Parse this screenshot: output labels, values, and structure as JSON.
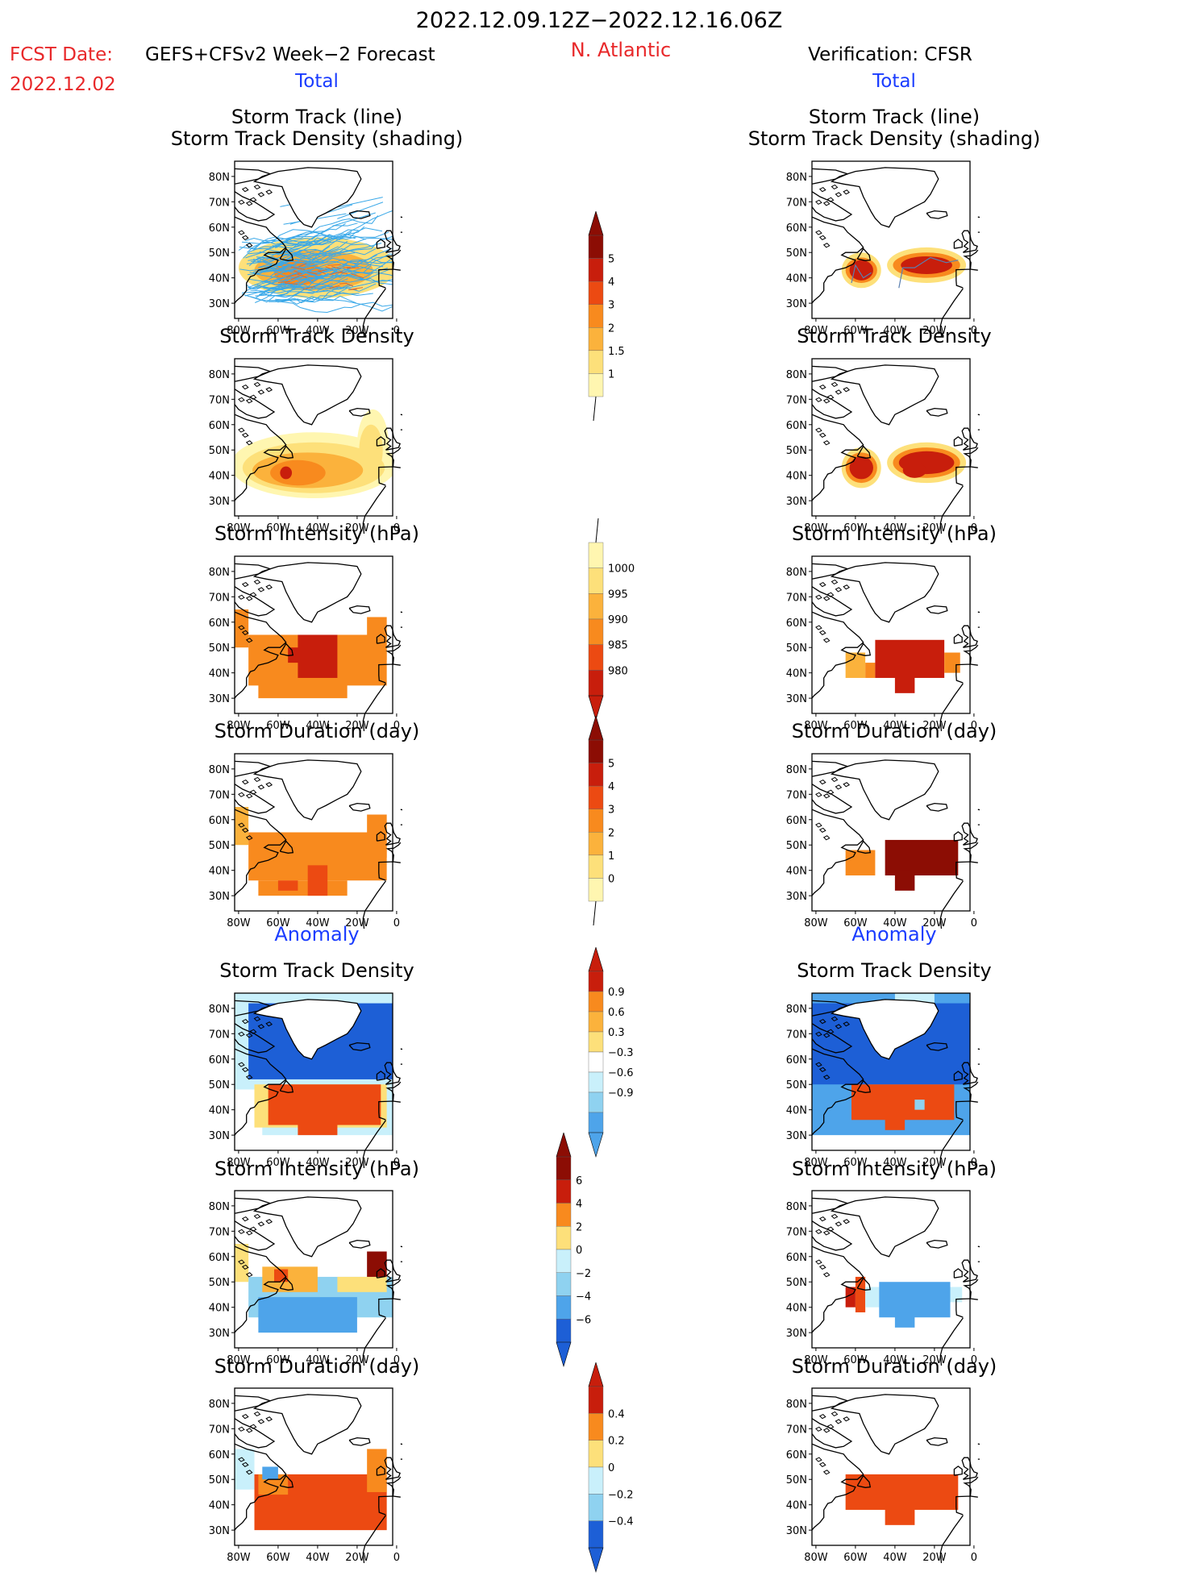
{
  "header": {
    "period": "2022.12.09.12Z−2022.12.16.06Z",
    "fcst_prefix": "FCST Date:",
    "model": "GEFS+CFSv2 Week−2 Forecast",
    "fcst_date": "2022.12.02",
    "region": "N. Atlantic",
    "verification": "Verification: CFSR"
  },
  "sections": {
    "total": "Total",
    "anomaly": "Anomaly"
  },
  "panel_titles": {
    "track_line": "Storm Track (line)",
    "track_shading": "Storm Track Density (shading)",
    "density": "Storm Track Density",
    "intensity": "Storm Intensity (hPa)",
    "duration": "Storm Duration (day)"
  },
  "axes": {
    "lat_ticks": [
      "30N",
      "40N",
      "50N",
      "60N",
      "70N",
      "80N"
    ],
    "lon_ticks": [
      "80W",
      "60W",
      "40W",
      "20W",
      "0"
    ]
  },
  "colorbars": {
    "density_total": [
      "1",
      "1.5",
      "2",
      "3",
      "4",
      "5"
    ],
    "intensity_total": [
      "1000",
      "995",
      "990",
      "985",
      "980"
    ],
    "duration_total": [
      "0",
      "1",
      "2",
      "3",
      "4",
      "5"
    ],
    "density_anom": [
      "0.9",
      "0.6",
      "0.3",
      "−0.3",
      "−0.6",
      "−0.9"
    ],
    "intensity_anom": [
      "6",
      "4",
      "2",
      "0",
      "−2",
      "−4",
      "−6"
    ],
    "duration_anom": [
      "0.4",
      "0.2",
      "0",
      "−0.2",
      "−0.4"
    ]
  },
  "colors": {
    "title_red": "#e8282a",
    "section_blue": "#1a3cff",
    "track_line": "#3aa8e8",
    "warm": [
      "#fff6b0",
      "#fde07a",
      "#fbb23c",
      "#f88a1e",
      "#ec4a12",
      "#c81e0c",
      "#8c0d04"
    ],
    "cool": [
      "#c9f0fb",
      "#8fd2f0",
      "#4ea4ea",
      "#1d5fd6"
    ]
  }
}
